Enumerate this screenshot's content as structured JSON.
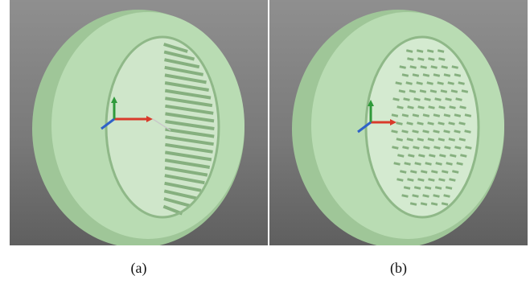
{
  "figure": {
    "panels": [
      {
        "id": "a",
        "caption": "(a)",
        "pattern": "grooves"
      },
      {
        "id": "b",
        "caption": "(b)",
        "pattern": "slots"
      }
    ],
    "colors": {
      "background": "#7a7a7a",
      "ring_face": "#b9dcb3",
      "ring_side": "#9fc698",
      "inner_wall": "#d4ead0",
      "groove": "#86b07f",
      "axis_x": "#d93a2b",
      "axis_y": "#2f9a3a",
      "axis_z": "#2f62c8"
    }
  }
}
